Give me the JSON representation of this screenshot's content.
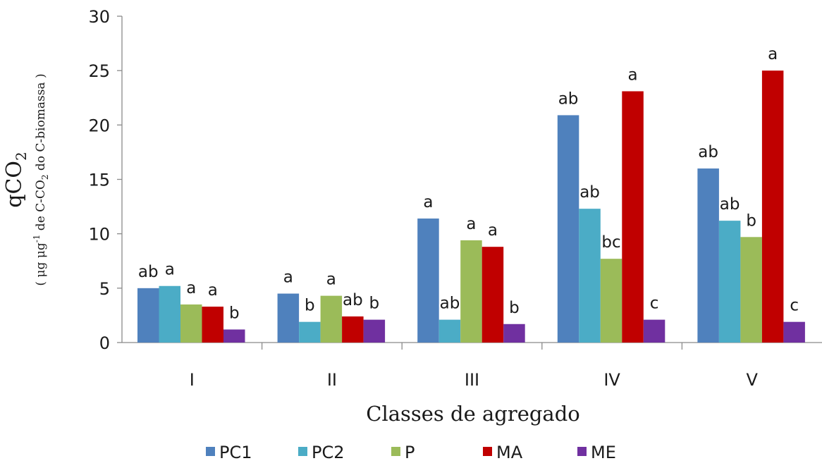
{
  "chart_data": {
    "type": "bar",
    "categories": [
      "I",
      "II",
      "III",
      "IV",
      "V"
    ],
    "series": [
      {
        "name": "PC1",
        "color": "#4F81BD",
        "values": [
          5.0,
          4.5,
          11.4,
          20.9,
          16.0
        ],
        "labels": [
          "ab",
          "a",
          "a",
          "ab",
          "ab"
        ]
      },
      {
        "name": "PC2",
        "color": "#4BACC6",
        "values": [
          5.2,
          1.9,
          2.1,
          12.3,
          11.2
        ],
        "labels": [
          "a",
          "b",
          "ab",
          "ab",
          "ab"
        ]
      },
      {
        "name": "P",
        "color": "#9BBB59",
        "values": [
          3.5,
          4.3,
          9.4,
          7.7,
          9.7
        ],
        "labels": [
          "a",
          "a",
          "a",
          "bc",
          "b"
        ]
      },
      {
        "name": "MA",
        "color": "#C00000",
        "values": [
          3.3,
          2.4,
          8.8,
          23.1,
          25.0
        ],
        "labels": [
          "a",
          "ab",
          "a",
          "a",
          "a"
        ]
      },
      {
        "name": "ME",
        "color": "#7030A0",
        "values": [
          1.2,
          2.1,
          1.7,
          2.1,
          1.9
        ],
        "labels": [
          "b",
          "b",
          "b",
          "c",
          "c"
        ]
      }
    ],
    "ylim": [
      0,
      30
    ],
    "yticks": [
      0,
      5,
      10,
      15,
      20,
      25,
      30
    ],
    "xlabel": "Classes de agregado",
    "ylabel": {
      "main": "qCO",
      "main_sub": "2",
      "unit_open": "( ",
      "unit_mu1": "μg μg",
      "unit_sup": "-1",
      "unit_mid": " de C-CO",
      "unit_sub": "2",
      "unit_end": " do C-biomassa )"
    },
    "legend_position": "bottom",
    "grid": false
  }
}
